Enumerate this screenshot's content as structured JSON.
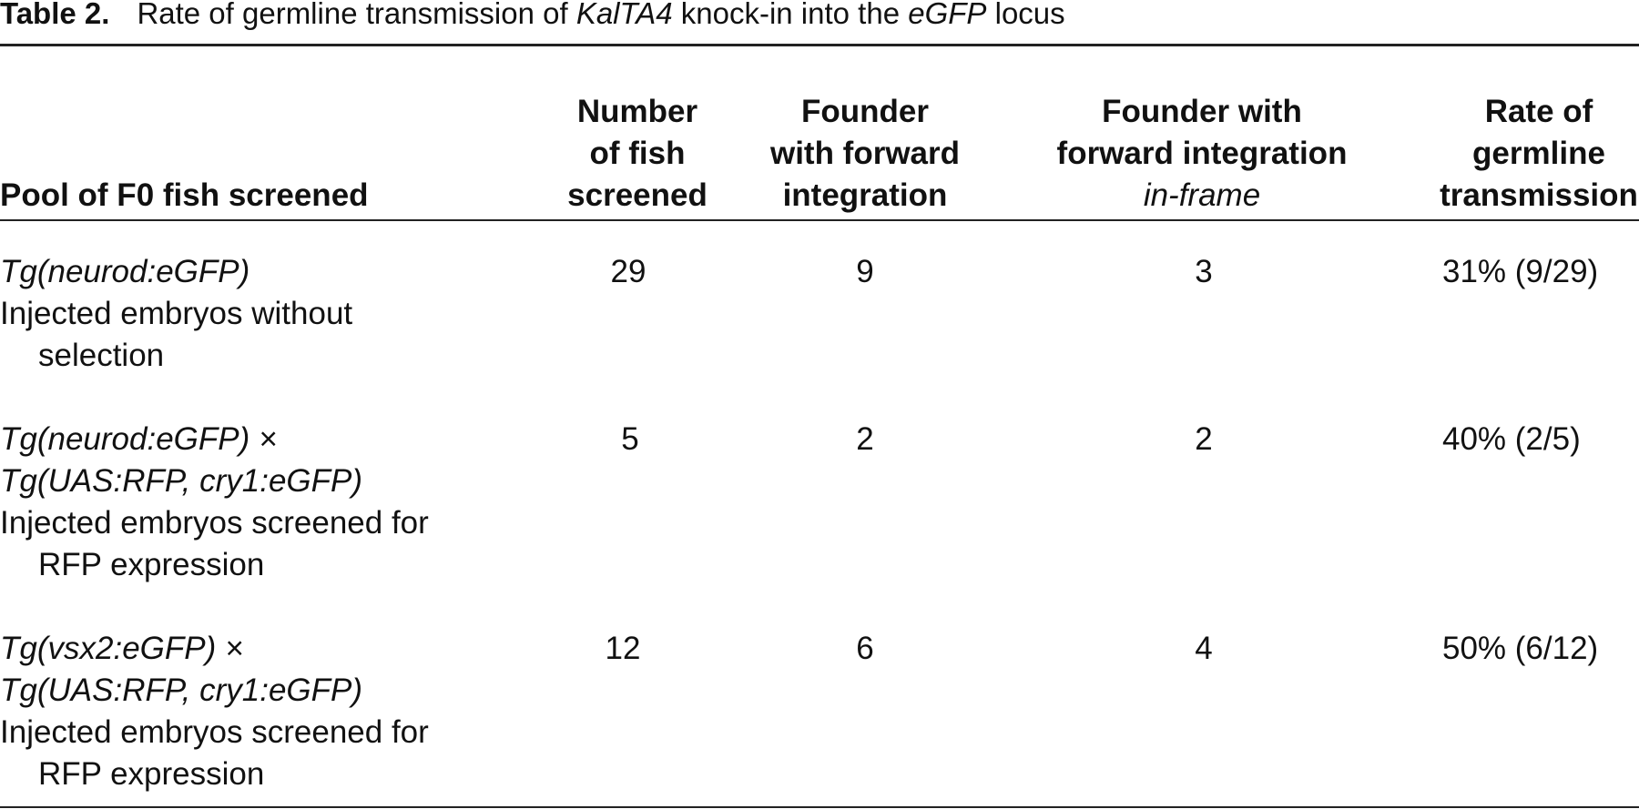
{
  "title": {
    "label": "Table 2.",
    "text_before": "Rate of germline transmission of ",
    "gene": "KalTA4",
    "text_middle": " knock-in into the ",
    "locus": "eGFP",
    "text_after": " locus"
  },
  "headers": [
    {
      "lines": [
        "Pool of F0 fish screened"
      ]
    },
    {
      "lines": [
        "Number",
        "of fish",
        "screened"
      ]
    },
    {
      "lines": [
        "Founder",
        "with forward",
        "integration"
      ]
    },
    {
      "lines": [
        "Founder with",
        "forward integration",
        "in-frame"
      ]
    },
    {
      "lines": [
        "Rate of",
        "germline",
        "transmission"
      ]
    }
  ],
  "rows": [
    {
      "pool": [
        "Tg(neurod:eGFP)",
        "Injected embryos without",
        "selection"
      ],
      "number": "29",
      "forward": "9",
      "in_frame": "3",
      "rate": "31% (9/29)"
    },
    {
      "pool": [
        "Tg(neurod:eGFP) ×",
        "Tg(UAS:RFP, cry1:eGFP)",
        "Injected embryos screened for",
        "RFP expression"
      ],
      "number": "5",
      "forward": "2",
      "in_frame": "2",
      "rate": "40% (2/5)"
    },
    {
      "pool": [
        "Tg(vsx2:eGFP) ×",
        "Tg(UAS:RFP, cry1:eGFP)",
        "Injected embryos screened for",
        "RFP expression"
      ],
      "number": "12",
      "forward": "6",
      "in_frame": "4",
      "rate": "50% (6/12)"
    }
  ]
}
